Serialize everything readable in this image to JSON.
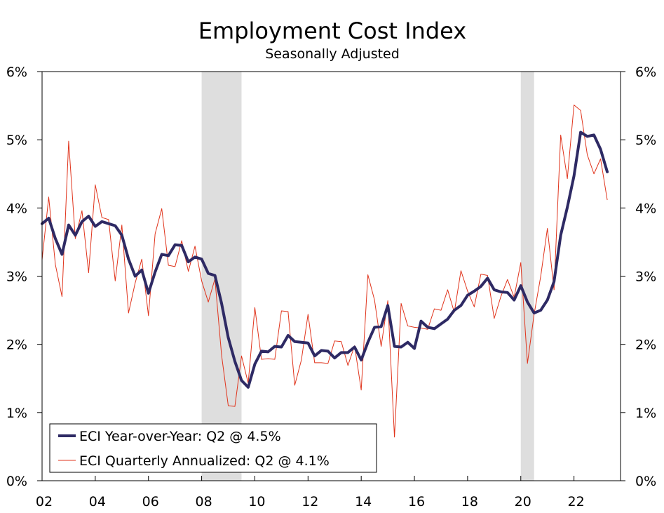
{
  "chart_data": {
    "type": "line",
    "title": "Employment Cost Index",
    "subtitle": "Seasonally Adjusted",
    "x_tick_labels": [
      "02",
      "04",
      "06",
      "08",
      "10",
      "12",
      "14",
      "16",
      "18",
      "20",
      "22"
    ],
    "x_tick_years": [
      2002,
      2004,
      2006,
      2008,
      2010,
      2012,
      2014,
      2016,
      2018,
      2020,
      2022
    ],
    "xlim": [
      2002.0,
      2023.75
    ],
    "ylim": [
      0,
      6
    ],
    "y_ticks": [
      0,
      1,
      2,
      3,
      4,
      5,
      6
    ],
    "y_tick_labels": [
      "0%",
      "1%",
      "2%",
      "3%",
      "4%",
      "5%",
      "6%"
    ],
    "grid": false,
    "legend_position": "bottom-left",
    "recessions": [
      [
        2008.0,
        2009.5
      ],
      [
        2020.0,
        2020.5
      ]
    ],
    "colors": {
      "yoy": "#2e2a64",
      "qoq": "#e0341c",
      "recession": "#dedede"
    },
    "series": [
      {
        "name": "ECI Year-over-Year: Q2 @ 4.5%",
        "key": "yoy",
        "start": 2002.0,
        "step": 0.25,
        "values": [
          3.77,
          3.85,
          3.55,
          3.32,
          3.75,
          3.6,
          3.8,
          3.88,
          3.73,
          3.8,
          3.77,
          3.74,
          3.6,
          3.25,
          3.0,
          3.09,
          2.75,
          3.06,
          3.32,
          3.3,
          3.46,
          3.45,
          3.21,
          3.28,
          3.25,
          3.04,
          3.01,
          2.6,
          2.1,
          1.75,
          1.47,
          1.37,
          1.71,
          1.9,
          1.89,
          1.97,
          1.96,
          2.13,
          2.04,
          2.03,
          2.02,
          1.83,
          1.91,
          1.9,
          1.8,
          1.88,
          1.88,
          1.96,
          1.77,
          2.03,
          2.25,
          2.26,
          2.57,
          1.97,
          1.96,
          2.03,
          1.94,
          2.34,
          2.25,
          2.23,
          2.3,
          2.37,
          2.5,
          2.57,
          2.72,
          2.78,
          2.85,
          2.97,
          2.8,
          2.77,
          2.76,
          2.65,
          2.86,
          2.62,
          2.46,
          2.5,
          2.65,
          2.92,
          3.6,
          4.01,
          4.47,
          5.11,
          5.05,
          5.07,
          4.86,
          4.53
        ]
      },
      {
        "name": "ECI Quarterly Annualized: Q2 @ 4.1%",
        "key": "qoq",
        "start": 2002.0,
        "step": 0.25,
        "values": [
          3.24,
          4.16,
          3.17,
          2.7,
          4.98,
          3.55,
          3.96,
          3.05,
          4.34,
          3.86,
          3.83,
          2.93,
          3.75,
          2.46,
          2.9,
          3.25,
          2.42,
          3.62,
          3.99,
          3.16,
          3.14,
          3.52,
          3.07,
          3.44,
          2.93,
          2.62,
          2.96,
          1.84,
          1.1,
          1.09,
          1.83,
          1.43,
          2.54,
          1.78,
          1.79,
          1.78,
          2.49,
          2.48,
          1.4,
          1.77,
          2.44,
          1.73,
          1.73,
          1.72,
          2.05,
          2.04,
          1.69,
          1.98,
          1.33,
          3.02,
          2.65,
          1.97,
          2.64,
          0.64,
          2.6,
          2.27,
          2.25,
          2.24,
          2.22,
          2.52,
          2.5,
          2.8,
          2.47,
          3.08,
          2.78,
          2.55,
          3.03,
          3.01,
          2.38,
          2.7,
          2.95,
          2.69,
          3.2,
          1.72,
          2.44,
          3.0,
          3.7,
          2.8,
          5.07,
          4.43,
          5.51,
          5.43,
          4.78,
          4.5,
          4.72,
          4.12
        ]
      }
    ]
  }
}
